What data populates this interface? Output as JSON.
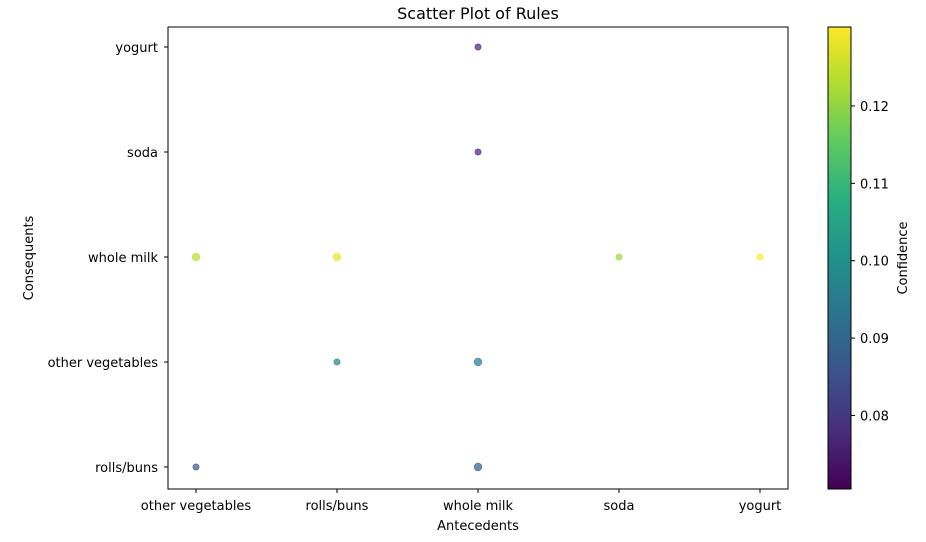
{
  "chart_data": {
    "type": "scatter",
    "title": "Scatter Plot of Rules",
    "xlabel": "Antecedents",
    "ylabel": "Consequents",
    "x_categories": [
      "other vegetables",
      "rolls/buns",
      "whole milk",
      "soda",
      "yogurt"
    ],
    "y_categories": [
      "rolls/buns",
      "other vegetables",
      "whole milk",
      "soda",
      "yogurt"
    ],
    "points": [
      {
        "x": "other vegetables",
        "y": "whole milk",
        "confidence": 0.124,
        "size": "large"
      },
      {
        "x": "other vegetables",
        "y": "rolls/buns",
        "confidence": 0.086,
        "size": "small"
      },
      {
        "x": "rolls/buns",
        "y": "whole milk",
        "confidence": 0.128,
        "size": "large"
      },
      {
        "x": "rolls/buns",
        "y": "other vegetables",
        "confidence": 0.097,
        "size": "small"
      },
      {
        "x": "whole milk",
        "y": "yogurt",
        "confidence": 0.077,
        "size": "small"
      },
      {
        "x": "whole milk",
        "y": "soda",
        "confidence": 0.077,
        "size": "small"
      },
      {
        "x": "whole milk",
        "y": "other vegetables",
        "confidence": 0.094,
        "size": "large"
      },
      {
        "x": "whole milk",
        "y": "rolls/buns",
        "confidence": 0.087,
        "size": "large"
      },
      {
        "x": "soda",
        "y": "whole milk",
        "confidence": 0.121,
        "size": "small"
      },
      {
        "x": "yogurt",
        "y": "whole milk",
        "confidence": 0.13,
        "size": "small"
      }
    ],
    "colorbar": {
      "label": "Confidence",
      "colormap": "viridis",
      "range": [
        0.0705,
        0.1302
      ],
      "ticks": [
        0.08,
        0.09,
        0.1,
        0.11,
        0.12
      ],
      "tick_labels": [
        "0.08",
        "0.09",
        "0.10",
        "0.11",
        "0.12"
      ]
    },
    "point_alpha": 0.7,
    "grid": false
  }
}
